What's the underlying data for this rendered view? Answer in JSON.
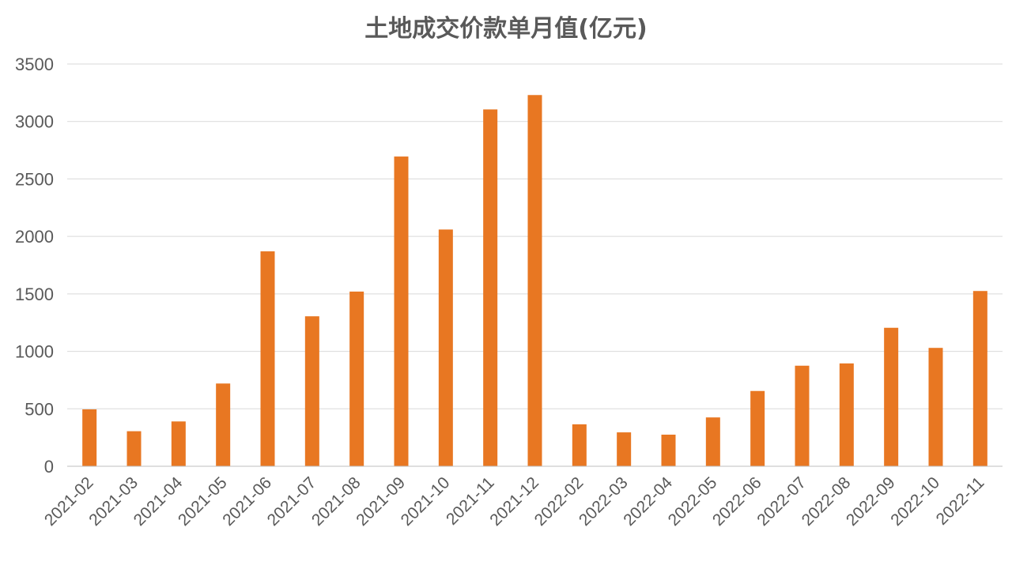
{
  "chart_data": {
    "type": "bar",
    "title": "土地成交价款单月值(亿元)",
    "xlabel": "",
    "ylabel": "",
    "ylim": [
      0,
      3500
    ],
    "yticks": [
      0,
      500,
      1000,
      1500,
      2000,
      2500,
      3000,
      3500
    ],
    "grid": true,
    "legend": "none",
    "categories": [
      "2021-02",
      "2021-03",
      "2021-04",
      "2021-05",
      "2021-06",
      "2021-07",
      "2021-08",
      "2021-09",
      "2021-10",
      "2021-11",
      "2021-12",
      "2022-02",
      "2022-03",
      "2022-04",
      "2022-05",
      "2022-06",
      "2022-07",
      "2022-08",
      "2022-09",
      "2022-10",
      "2022-11"
    ],
    "values": [
      495,
      305,
      390,
      720,
      1870,
      1305,
      1520,
      2695,
      2060,
      3105,
      3230,
      365,
      295,
      275,
      425,
      655,
      875,
      895,
      1205,
      1030,
      1525
    ],
    "colors": {
      "bar": "#E87722",
      "grid": "#D9D9D9",
      "axis": "#BFBFBF",
      "text": "#595959"
    }
  }
}
